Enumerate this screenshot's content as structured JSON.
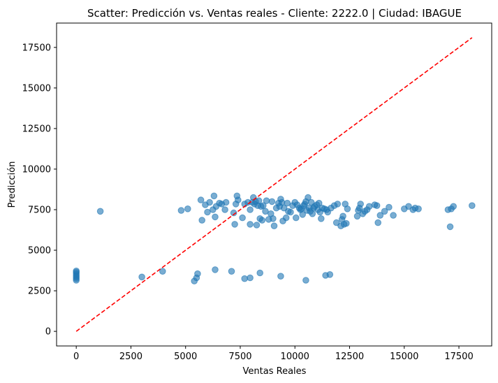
{
  "chart_data": {
    "type": "scatter",
    "title": "Scatter: Predicción vs. Ventas reales - Cliente: 2222.0 | Ciudad: IBAGUE",
    "xlabel": "Ventas Reales",
    "ylabel": "Predicción",
    "xlim": [
      -900,
      19000
    ],
    "ylim": [
      -900,
      19000
    ],
    "xticks": [
      0,
      2500,
      5000,
      7500,
      10000,
      12500,
      15000,
      17500
    ],
    "yticks": [
      0,
      2500,
      5000,
      7500,
      10000,
      12500,
      15000,
      17500
    ],
    "xtick_labels": [
      "0",
      "2500",
      "5000",
      "7500",
      "10000",
      "12500",
      "15000",
      "17500"
    ],
    "ytick_labels": [
      "0",
      "2500",
      "5000",
      "7500",
      "10000",
      "12500",
      "15000",
      "17500"
    ],
    "grid": false,
    "point_color": "#1f77b4",
    "reference_line": {
      "style": "dashed",
      "color": "#ff0000",
      "from": [
        0,
        0
      ],
      "to": [
        18100,
        18100
      ]
    },
    "points": [
      [
        0,
        3150
      ],
      [
        0,
        3250
      ],
      [
        0,
        3350
      ],
      [
        0,
        3450
      ],
      [
        0,
        3550
      ],
      [
        0,
        3650
      ],
      [
        0,
        3720
      ],
      [
        1100,
        7400
      ],
      [
        3000,
        3350
      ],
      [
        3950,
        3700
      ],
      [
        4800,
        7450
      ],
      [
        5100,
        7550
      ],
      [
        5400,
        3100
      ],
      [
        5500,
        3300
      ],
      [
        5550,
        3550
      ],
      [
        5700,
        8100
      ],
      [
        5750,
        6850
      ],
      [
        5900,
        7800
      ],
      [
        6000,
        7350
      ],
      [
        6100,
        7950
      ],
      [
        6250,
        7500
      ],
      [
        6300,
        8350
      ],
      [
        6350,
        7050
      ],
      [
        6400,
        7700
      ],
      [
        6350,
        3800
      ],
      [
        6550,
        7900
      ],
      [
        6650,
        7850
      ],
      [
        6800,
        7500
      ],
      [
        6850,
        7950
      ],
      [
        7100,
        3700
      ],
      [
        7200,
        7300
      ],
      [
        7250,
        6600
      ],
      [
        7300,
        7850
      ],
      [
        7350,
        8350
      ],
      [
        7400,
        8100
      ],
      [
        7600,
        7000
      ],
      [
        7700,
        3250
      ],
      [
        7700,
        7850
      ],
      [
        7850,
        7950
      ],
      [
        7950,
        3300
      ],
      [
        7950,
        7500
      ],
      [
        7950,
        6600
      ],
      [
        8050,
        7950
      ],
      [
        8100,
        8250
      ],
      [
        8150,
        7850
      ],
      [
        8200,
        8000
      ],
      [
        8250,
        6550
      ],
      [
        8300,
        7750
      ],
      [
        8350,
        8050
      ],
      [
        8400,
        3600
      ],
      [
        8400,
        6950
      ],
      [
        8450,
        7700
      ],
      [
        8500,
        6850
      ],
      [
        8550,
        7750
      ],
      [
        8650,
        7400
      ],
      [
        8700,
        8050
      ],
      [
        8800,
        6900
      ],
      [
        8900,
        7250
      ],
      [
        8950,
        8000
      ],
      [
        9000,
        6950
      ],
      [
        9050,
        6500
      ],
      [
        9150,
        7600
      ],
      [
        9250,
        7900
      ],
      [
        9300,
        7700
      ],
      [
        9350,
        8150
      ],
      [
        9350,
        3400
      ],
      [
        9400,
        7950
      ],
      [
        9450,
        6800
      ],
      [
        9500,
        7600
      ],
      [
        9600,
        7000
      ],
      [
        9650,
        7900
      ],
      [
        9700,
        7400
      ],
      [
        9800,
        7350
      ],
      [
        9900,
        7750
      ],
      [
        10000,
        7950
      ],
      [
        10050,
        7000
      ],
      [
        10100,
        7800
      ],
      [
        10200,
        7600
      ],
      [
        10250,
        7500
      ],
      [
        10300,
        7550
      ],
      [
        10350,
        7200
      ],
      [
        10400,
        7750
      ],
      [
        10450,
        7850
      ],
      [
        10500,
        3150
      ],
      [
        10500,
        8000
      ],
      [
        10550,
        7450
      ],
      [
        10600,
        8250
      ],
      [
        10650,
        7600
      ],
      [
        10700,
        7400
      ],
      [
        10750,
        7950
      ],
      [
        10800,
        7250
      ],
      [
        10850,
        7600
      ],
      [
        10900,
        7700
      ],
      [
        11000,
        7800
      ],
      [
        11050,
        7500
      ],
      [
        11100,
        7900
      ],
      [
        11150,
        7350
      ],
      [
        11200,
        6950
      ],
      [
        11250,
        7600
      ],
      [
        11350,
        7550
      ],
      [
        11400,
        3450
      ],
      [
        11450,
        7500
      ],
      [
        11500,
        7350
      ],
      [
        11600,
        3500
      ],
      [
        11650,
        7600
      ],
      [
        11800,
        7750
      ],
      [
        11900,
        6700
      ],
      [
        11950,
        7850
      ],
      [
        12100,
        6500
      ],
      [
        12150,
        6900
      ],
      [
        12200,
        7100
      ],
      [
        12250,
        6600
      ],
      [
        12300,
        7850
      ],
      [
        12350,
        6650
      ],
      [
        12400,
        7550
      ],
      [
        12850,
        7100
      ],
      [
        12900,
        7450
      ],
      [
        12950,
        7600
      ],
      [
        13000,
        7850
      ],
      [
        13100,
        7250
      ],
      [
        13200,
        7400
      ],
      [
        13300,
        7500
      ],
      [
        13400,
        7700
      ],
      [
        13650,
        7800
      ],
      [
        13750,
        7750
      ],
      [
        13800,
        6700
      ],
      [
        13900,
        7150
      ],
      [
        14100,
        7400
      ],
      [
        14300,
        7650
      ],
      [
        14500,
        7150
      ],
      [
        15000,
        7550
      ],
      [
        15200,
        7700
      ],
      [
        15400,
        7500
      ],
      [
        15500,
        7600
      ],
      [
        15650,
        7550
      ],
      [
        17000,
        7500
      ],
      [
        17100,
        6450
      ],
      [
        17150,
        7550
      ],
      [
        17250,
        7700
      ],
      [
        18100,
        7750
      ]
    ]
  }
}
